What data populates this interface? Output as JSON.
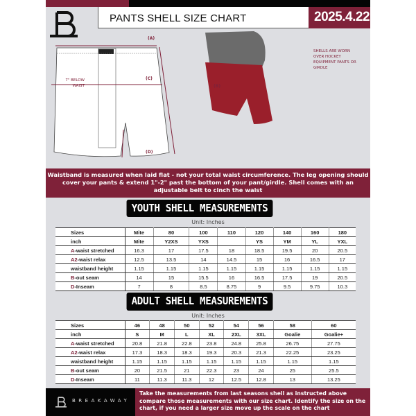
{
  "header": {
    "title": "PANTS SHELL SIZE CHART",
    "date": "2025.4.22",
    "logo_letter": "B"
  },
  "diagram": {
    "label_a": "(A)",
    "label_b": "(B)",
    "label_c": "(C)",
    "label_d": "(D)",
    "below_waist": "7\" BELOW WAIST",
    "note": "SHELLS ARE WORN OVER HOCKEY EQUIPMENT PANTS OR GIRDLE"
  },
  "banner": "Waistband is measured when laid flat - not your total waist circumference. The leg opening should cover your pants & extend 1\"-2\" past the bottom of your pant/girdle. Shell comes with an adjustable belt to cinch the waist",
  "youth": {
    "title": "YOUTH SHELL MEASUREMENTS",
    "unit": "Unit: Inches",
    "rows": [
      {
        "mark": "",
        "label": "Sizes",
        "values": [
          "Mite",
          "80",
          "100",
          "110",
          "120",
          "140",
          "160",
          "180"
        ]
      },
      {
        "mark": "",
        "label": "inch",
        "values": [
          "Mite",
          "Y2XS",
          "YXS",
          "",
          "YS",
          "YM",
          "YL",
          "YXL"
        ]
      },
      {
        "mark": "A",
        "label": "-waist stretched",
        "values": [
          "16.3",
          "17",
          "17.5",
          "18",
          "18.5",
          "19.5",
          "20",
          "20.5"
        ]
      },
      {
        "mark": "A2",
        "label": "-waist relax",
        "values": [
          "12.5",
          "13.5",
          "14",
          "14.5",
          "15",
          "16",
          "16.5",
          "17"
        ]
      },
      {
        "mark": "",
        "label": "waistband height",
        "values": [
          "1.15",
          "1.15",
          "1.15",
          "1.15",
          "1.15",
          "1.15",
          "1.15",
          "1.15"
        ]
      },
      {
        "mark": "B",
        "label": "-out seam",
        "values": [
          "14",
          "15",
          "15.5",
          "16",
          "16.5",
          "17.5",
          "19",
          "20.5"
        ]
      },
      {
        "mark": "D",
        "label": "-Inseam",
        "values": [
          "7",
          "8",
          "8.5",
          "8.75",
          "9",
          "9.5",
          "9.75",
          "10.3"
        ]
      }
    ]
  },
  "adult": {
    "title": "ADULT SHELL MEASUREMENTS",
    "unit": "Unit: Inches",
    "rows": [
      {
        "mark": "",
        "label": "Sizes",
        "values": [
          "46",
          "48",
          "50",
          "52",
          "54",
          "56",
          "58",
          "60"
        ]
      },
      {
        "mark": "",
        "label": "inch",
        "values": [
          "S",
          "M",
          "L",
          "XL",
          "2XL",
          "3XL",
          "Goalie",
          "Goalie+"
        ]
      },
      {
        "mark": "A",
        "label": "-waist stretched",
        "values": [
          "20.8",
          "21.8",
          "22.8",
          "23.8",
          "24.8",
          "25.8",
          "26.75",
          "27.75"
        ]
      },
      {
        "mark": "A2",
        "label": "-waist relax",
        "values": [
          "17.3",
          "18.3",
          "18.3",
          "19.3",
          "20.3",
          "21.3",
          "22.25",
          "23.25"
        ]
      },
      {
        "mark": "",
        "label": "waistband height",
        "values": [
          "1.15",
          "1.15",
          "1.15",
          "1.15",
          "1.15",
          "1.15",
          "1.15",
          "1.15"
        ]
      },
      {
        "mark": "B",
        "label": "-out seam",
        "values": [
          "20",
          "21.5",
          "21",
          "22.3",
          "23",
          "24",
          "25",
          "25.5"
        ]
      },
      {
        "mark": "D",
        "label": "-Inseam",
        "values": [
          "11",
          "11.3",
          "11.3",
          "12",
          "12.5",
          "12.8",
          "13",
          "13.25"
        ]
      }
    ]
  },
  "footer": {
    "brand": "BREAKAWAY",
    "text": "Take the measurements from last seasons shell as instructed above compare those measurements  with our size chart. Identify the size on the chart, if you need a larger size move up the scale on the chart"
  },
  "colors": {
    "brand": "#7f2139",
    "dark": "#050505",
    "background": "#dddee2"
  }
}
